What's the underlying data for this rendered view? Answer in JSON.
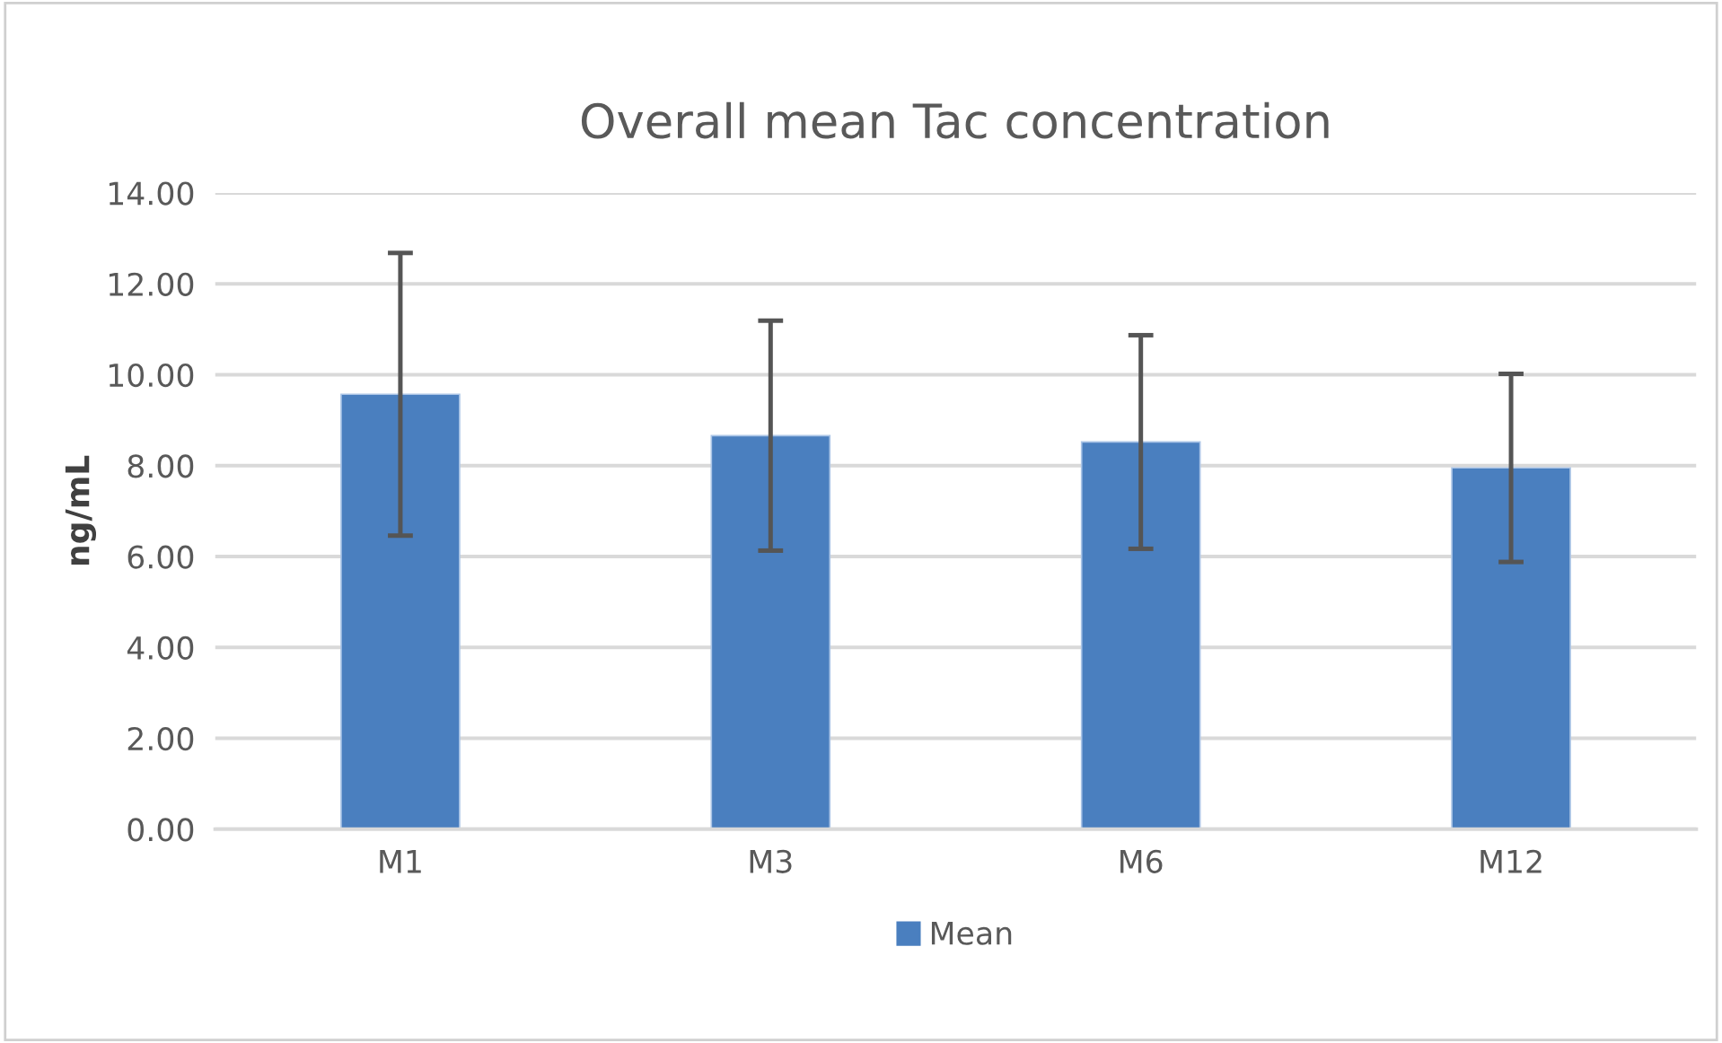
{
  "chart_data": {
    "type": "bar",
    "title": "Overall mean Tac concentration",
    "ylabel": "ng/mL",
    "categories": [
      "M1",
      "M3",
      "M6",
      "M12"
    ],
    "series": [
      {
        "name": "Mean",
        "color": "#4a7fbf",
        "values": [
          9.57,
          8.66,
          8.52,
          7.95
        ],
        "errors": [
          3.11,
          2.53,
          2.35,
          2.07
        ]
      }
    ],
    "ylim": [
      0,
      14
    ],
    "yticks": [
      {
        "value": 0,
        "label": "0.00"
      },
      {
        "value": 2,
        "label": "2.00"
      },
      {
        "value": 4,
        "label": "4.00"
      },
      {
        "value": 6,
        "label": "6.00"
      },
      {
        "value": 8,
        "label": "8.00"
      },
      {
        "value": 10,
        "label": "10.00"
      },
      {
        "value": 12,
        "label": "12.00"
      },
      {
        "value": 14,
        "label": "14.00"
      }
    ],
    "grid": "y",
    "legend": "bottom"
  }
}
